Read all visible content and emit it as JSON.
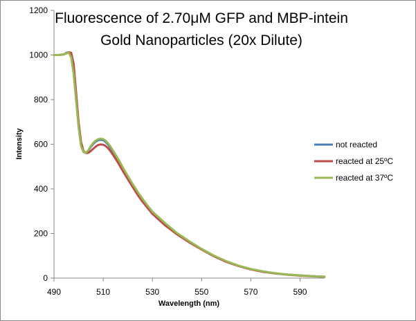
{
  "chart_data": {
    "type": "line",
    "title_lines": [
      "Fluorescence of 2.70μM GFP and MBP-intein",
      "Gold Nanoparticles (20x Dilute)"
    ],
    "xlabel": "Wavelength (nm)",
    "ylabel": "Intensity",
    "xlim": [
      490,
      600
    ],
    "ylim": [
      0,
      1200
    ],
    "x_ticks": [
      "490",
      "510",
      "530",
      "550",
      "570",
      "590"
    ],
    "y_ticks": [
      "0",
      "200",
      "400",
      "600",
      "800",
      "1000",
      "1200"
    ],
    "x_tick_values": [
      490,
      510,
      530,
      550,
      570,
      590
    ],
    "y_tick_values": [
      0,
      200,
      400,
      600,
      800,
      1000,
      1200
    ],
    "grid": false,
    "legend_position": "right",
    "series": [
      {
        "name": "not reacted",
        "color": "#4a7ebb",
        "x": [
          490,
          492,
          494,
          495,
          496,
          497,
          498,
          499,
          500,
          501,
          502,
          503,
          504,
          505,
          506,
          507,
          508,
          509,
          510,
          511,
          512,
          513,
          514,
          516,
          518,
          520,
          522,
          524,
          526,
          528,
          530,
          535,
          540,
          545,
          550,
          555,
          560,
          565,
          570,
          575,
          580,
          585,
          590,
          595,
          600
        ],
        "values": [
          1000,
          1000,
          1002,
          1010,
          1012,
          995,
          920,
          800,
          680,
          595,
          565,
          562,
          572,
          588,
          602,
          612,
          618,
          620,
          618,
          610,
          598,
          583,
          565,
          530,
          490,
          452,
          415,
          382,
          350,
          322,
          295,
          245,
          200,
          163,
          130,
          100,
          75,
          55,
          40,
          29,
          21,
          16,
          12,
          9,
          6
        ]
      },
      {
        "name": "reacted at 25ºC",
        "color": "#be4b48",
        "x": [
          490,
          492,
          494,
          495,
          496,
          497,
          498,
          499,
          500,
          501,
          502,
          503,
          504,
          505,
          506,
          507,
          508,
          509,
          510,
          511,
          512,
          513,
          514,
          516,
          518,
          520,
          522,
          524,
          526,
          528,
          530,
          535,
          540,
          545,
          550,
          555,
          560,
          565,
          570,
          575,
          580,
          585,
          590,
          595,
          600
        ],
        "values": [
          1000,
          1000,
          1003,
          1007,
          1012,
          1010,
          960,
          830,
          700,
          610,
          570,
          560,
          562,
          570,
          580,
          590,
          597,
          599,
          598,
          592,
          582,
          568,
          552,
          518,
          480,
          443,
          408,
          373,
          342,
          315,
          288,
          238,
          196,
          160,
          128,
          98,
          73,
          54,
          39,
          28,
          21,
          15,
          11,
          8,
          6
        ]
      },
      {
        "name": "reacted at 37ºC",
        "color": "#98b954",
        "x": [
          490,
          492,
          494,
          495,
          496,
          497,
          498,
          499,
          500,
          501,
          502,
          503,
          504,
          505,
          506,
          507,
          508,
          509,
          510,
          511,
          512,
          513,
          514,
          516,
          518,
          520,
          522,
          524,
          526,
          528,
          530,
          535,
          540,
          545,
          550,
          555,
          560,
          565,
          570,
          575,
          580,
          585,
          590,
          595,
          600
        ],
        "values": [
          1000,
          1000,
          1002,
          1008,
          1010,
          990,
          915,
          795,
          676,
          592,
          565,
          562,
          574,
          592,
          607,
          617,
          623,
          625,
          623,
          616,
          604,
          589,
          571,
          536,
          496,
          458,
          421,
          387,
          355,
          326,
          298,
          248,
          202,
          165,
          131,
          101,
          76,
          56,
          41,
          30,
          22,
          16,
          12,
          9,
          6
        ]
      }
    ]
  }
}
